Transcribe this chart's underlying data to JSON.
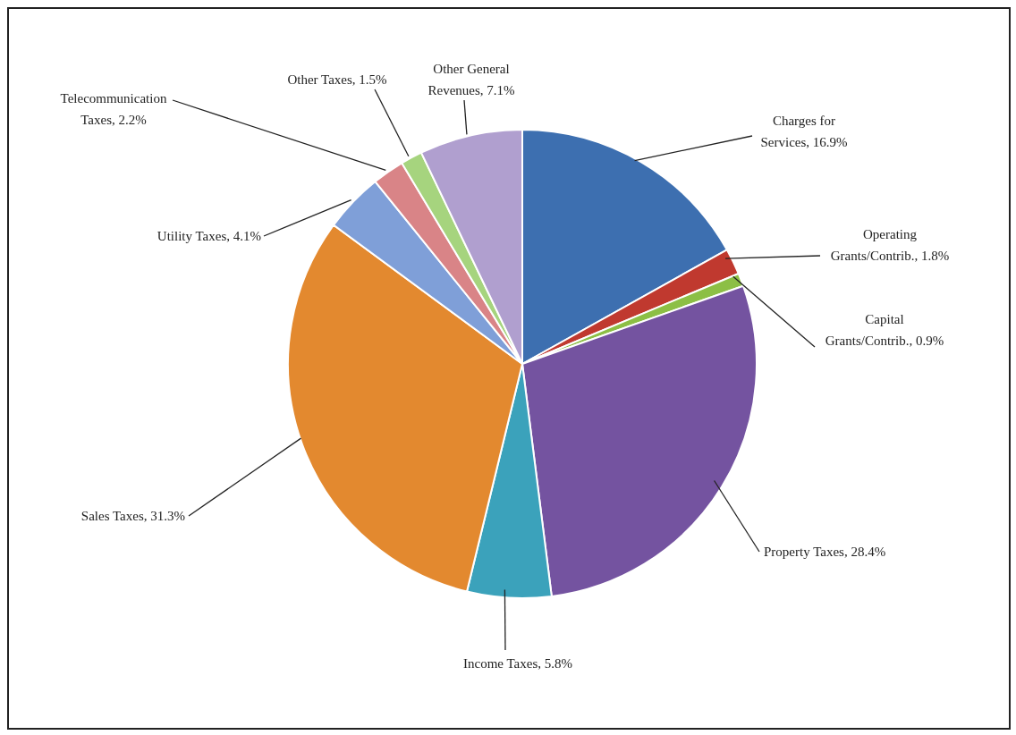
{
  "chart_data": {
    "type": "pie",
    "categories": [
      "Charges for Services",
      "Operating Grants/Contrib.",
      "Capital Grants/Contrib.",
      "Property Taxes",
      "Income Taxes",
      "Sales Taxes",
      "Utility Taxes",
      "Telecommunication Taxes",
      "Other Taxes",
      "Other General Revenues"
    ],
    "values": [
      16.9,
      1.8,
      0.9,
      28.4,
      5.8,
      31.3,
      4.1,
      2.2,
      1.5,
      7.1
    ],
    "value_labels": [
      "16.9%",
      "1.8%",
      "0.9%",
      "28.4%",
      "5.8%",
      "31.3%",
      "4.1%",
      "2.2%",
      "1.5%",
      "7.1%"
    ],
    "colors": [
      "#3d6fb0",
      "#c0392f",
      "#8cbf45",
      "#7453a0",
      "#3ba2bb",
      "#e3892f",
      "#7f9fd8",
      "#d98487",
      "#a6d47e",
      "#b09fcf"
    ]
  }
}
